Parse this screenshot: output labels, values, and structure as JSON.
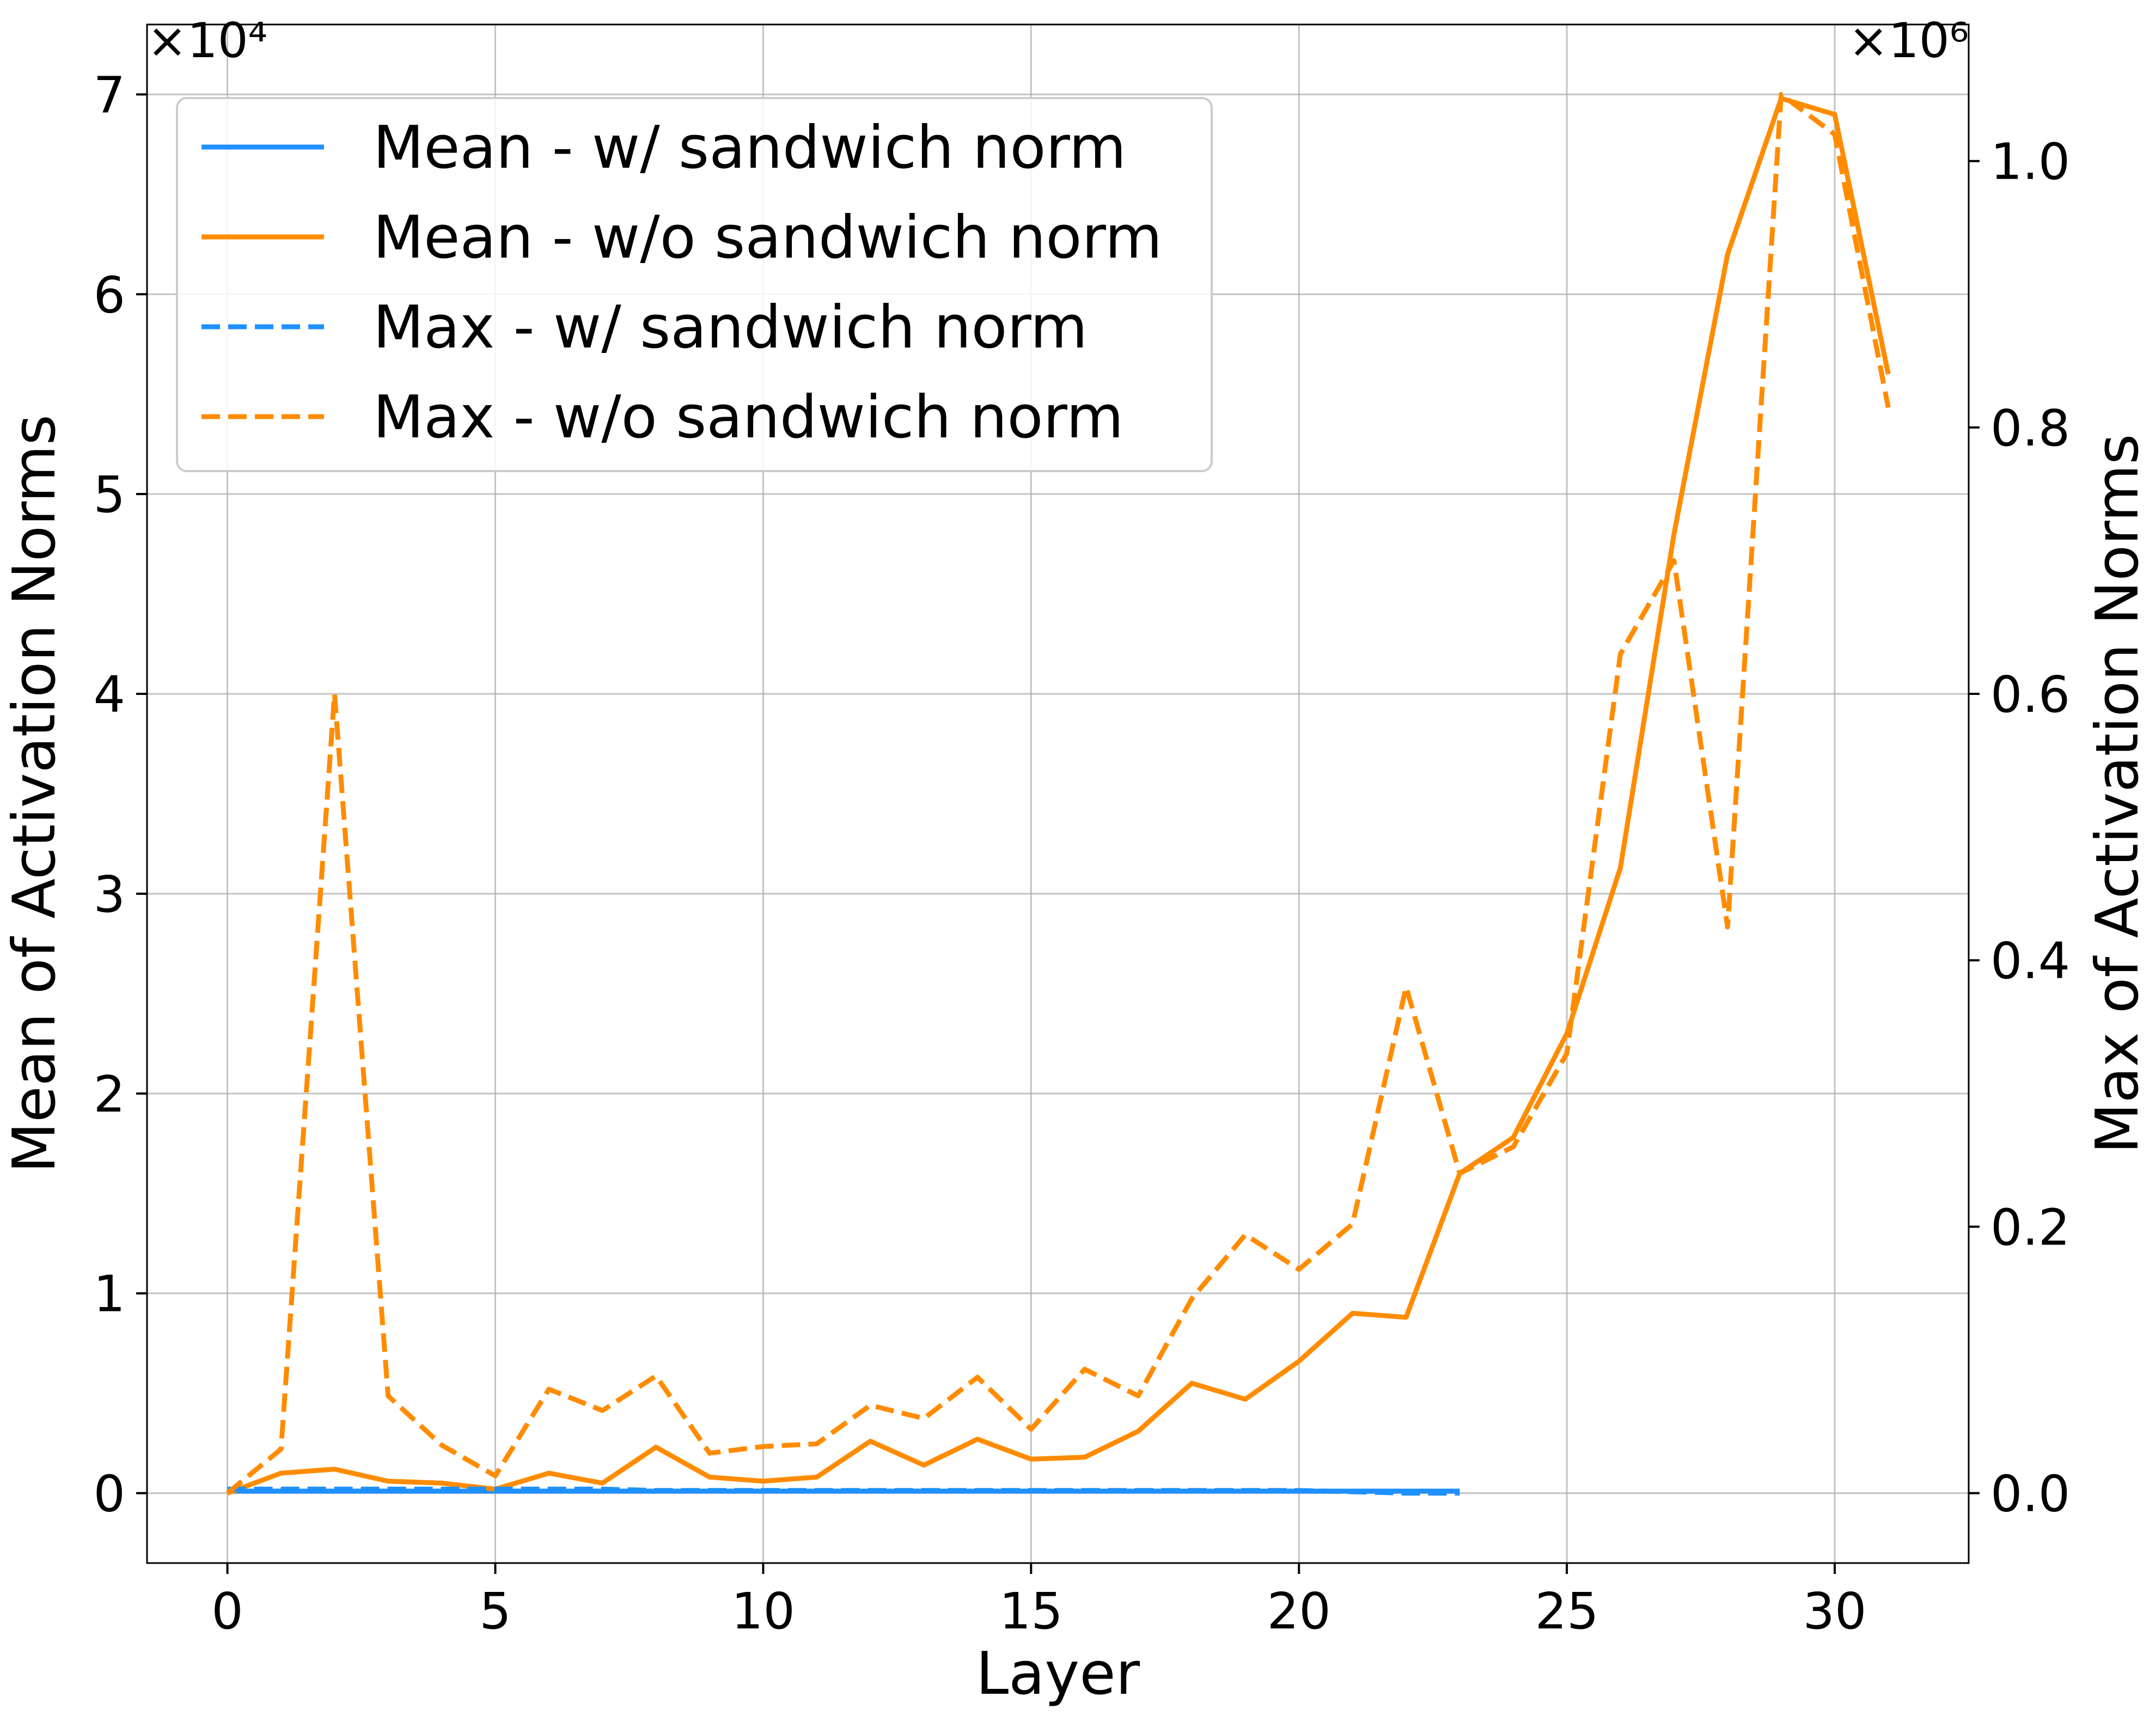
{
  "chart_data": {
    "type": "line",
    "xlabel": "Layer",
    "ylabel_left": "Mean of Activation Norms",
    "ylabel_right": "Max of Activation Norms",
    "left_multiplier": "×10⁴",
    "right_multiplier": "×10⁶",
    "xlim": [
      -1.5,
      32.5
    ],
    "ylim_left": [
      -0.35,
      7.35
    ],
    "ylim_right": [
      -0.0525,
      1.1025
    ],
    "x_ticks": [
      0,
      5,
      10,
      15,
      20,
      25,
      30
    ],
    "x_tick_labels": [
      "0",
      "5",
      "10",
      "15",
      "20",
      "25",
      "30"
    ],
    "left_ticks": [
      0,
      1,
      2,
      3,
      4,
      5,
      6,
      7
    ],
    "left_tick_labels": [
      "0",
      "1",
      "2",
      "3",
      "4",
      "5",
      "6",
      "7"
    ],
    "right_ticks": [
      0,
      0.2,
      0.4,
      0.6,
      0.8,
      1.0
    ],
    "right_tick_labels": [
      "0.0",
      "0.2",
      "0.4",
      "0.6",
      "0.8",
      "1.0"
    ],
    "grid": true,
    "legend_position": "top-left",
    "colors": {
      "blue": "#1e90ff",
      "orange": "#ff8c00"
    },
    "series": [
      {
        "name": "Mean - w/  sandwich norm",
        "axis": "left",
        "color": "#1e90ff",
        "dash": "solid",
        "x": [
          0,
          1,
          2,
          3,
          4,
          5,
          6,
          7,
          8,
          9,
          10,
          11,
          12,
          13,
          14,
          15,
          16,
          17,
          18,
          19,
          20,
          21,
          22,
          23
        ],
        "y": [
          0.01,
          0.01,
          0.01,
          0.01,
          0.01,
          0.01,
          0.01,
          0.01,
          0.01,
          0.01,
          0.01,
          0.01,
          0.01,
          0.01,
          0.01,
          0.01,
          0.01,
          0.01,
          0.01,
          0.01,
          0.01,
          0.01,
          0.01,
          0.01
        ]
      },
      {
        "name": "Mean - w/o sandwich norm",
        "axis": "left",
        "color": "#ff8c00",
        "dash": "solid",
        "x": [
          0,
          1,
          2,
          3,
          4,
          5,
          6,
          7,
          8,
          9,
          10,
          11,
          12,
          13,
          14,
          15,
          16,
          17,
          18,
          19,
          20,
          21,
          22,
          23,
          24,
          25,
          26,
          27,
          28,
          29,
          30,
          31
        ],
        "y": [
          0.0,
          0.1,
          0.12,
          0.06,
          0.05,
          0.02,
          0.1,
          0.05,
          0.23,
          0.08,
          0.06,
          0.08,
          0.26,
          0.14,
          0.27,
          0.17,
          0.18,
          0.31,
          0.55,
          0.47,
          0.66,
          0.9,
          0.88,
          1.6,
          1.78,
          2.3,
          3.13,
          4.8,
          6.2,
          6.98,
          6.9,
          5.6
        ]
      },
      {
        "name": "Max - w/  sandwich norm",
        "axis": "right",
        "color": "#1e90ff",
        "dash": "dashed",
        "x": [
          0,
          1,
          2,
          3,
          4,
          5,
          6,
          7,
          8,
          9,
          10,
          11,
          12,
          13,
          14,
          15,
          16,
          17,
          18,
          19,
          20,
          21,
          22,
          23
        ],
        "y": [
          0.003,
          0.003,
          0.003,
          0.003,
          0.003,
          0.003,
          0.003,
          0.003,
          0.002,
          0.002,
          0.002,
          0.002,
          0.002,
          0.002,
          0.002,
          0.002,
          0.002,
          0.002,
          0.002,
          0.002,
          0.002,
          0.001,
          0.0,
          0.0
        ]
      },
      {
        "name": "Max - w/o sandwich norm",
        "axis": "right",
        "color": "#ff8c00",
        "dash": "dashed",
        "x": [
          0,
          1,
          2,
          3,
          4,
          5,
          6,
          7,
          8,
          9,
          10,
          11,
          12,
          13,
          14,
          15,
          16,
          17,
          18,
          19,
          20,
          21,
          22,
          23,
          24,
          25,
          26,
          27,
          28,
          29,
          30,
          31
        ],
        "y": [
          0.0,
          0.033,
          0.6,
          0.073,
          0.036,
          0.013,
          0.078,
          0.062,
          0.088,
          0.03,
          0.035,
          0.037,
          0.066,
          0.056,
          0.087,
          0.048,
          0.093,
          0.073,
          0.146,
          0.194,
          0.168,
          0.202,
          0.38,
          0.24,
          0.26,
          0.33,
          0.63,
          0.7,
          0.425,
          1.05,
          1.02,
          0.815
        ]
      }
    ]
  }
}
